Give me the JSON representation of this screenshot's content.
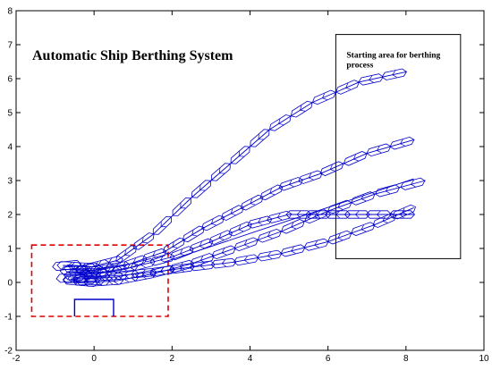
{
  "chart_data": {
    "type": "line",
    "title": "Automatic Ship Berthing System",
    "xlabel": "",
    "ylabel": "",
    "xlim": [
      -2,
      10
    ],
    "ylim": [
      -2,
      8
    ],
    "x_ticks": [
      "-2",
      "0",
      "2",
      "4",
      "6",
      "8",
      "10"
    ],
    "y_ticks": [
      "-2",
      "-1",
      "0",
      "1",
      "2",
      "3",
      "4",
      "5",
      "6",
      "7",
      "8"
    ],
    "grid": false,
    "line_color": "#0000cc",
    "trajectories": [
      {
        "start": [
          8.0,
          6.2
        ],
        "points": [
          [
            8.0,
            6.2
          ],
          [
            6.8,
            5.9
          ],
          [
            5.6,
            5.3
          ],
          [
            4.5,
            4.5
          ],
          [
            3.5,
            3.5
          ],
          [
            2.5,
            2.5
          ],
          [
            1.5,
            1.4
          ],
          [
            0.6,
            0.65
          ],
          [
            -0.1,
            0.45
          ],
          [
            -0.8,
            0.5
          ]
        ]
      },
      {
        "start": [
          8.2,
          4.2
        ],
        "points": [
          [
            8.2,
            4.2
          ],
          [
            7.0,
            3.8
          ],
          [
            5.8,
            3.2
          ],
          [
            4.8,
            2.8
          ],
          [
            3.8,
            2.2
          ],
          [
            2.8,
            1.6
          ],
          [
            1.8,
            0.9
          ],
          [
            0.8,
            0.5
          ],
          [
            0.0,
            0.35
          ],
          [
            -0.6,
            0.4
          ]
        ]
      },
      {
        "start": [
          8.2,
          2.0
        ],
        "points": [
          [
            8.2,
            2.0
          ],
          [
            7.0,
            2.0
          ],
          [
            6.0,
            2.0
          ],
          [
            5.0,
            2.0
          ],
          [
            4.0,
            1.7
          ],
          [
            3.0,
            1.2
          ],
          [
            2.0,
            0.75
          ],
          [
            1.0,
            0.45
          ],
          [
            0.2,
            0.3
          ],
          [
            -0.5,
            0.3
          ]
        ]
      },
      {
        "start": [
          8.2,
          2.2
        ],
        "points": [
          [
            8.2,
            2.2
          ],
          [
            7.2,
            1.7
          ],
          [
            6.0,
            1.2
          ],
          [
            4.8,
            0.85
          ],
          [
            3.6,
            0.6
          ],
          [
            2.5,
            0.45
          ],
          [
            1.5,
            0.3
          ],
          [
            0.6,
            0.2
          ],
          [
            -0.1,
            0.15
          ],
          [
            -0.6,
            0.1
          ]
        ]
      },
      {
        "start": [
          8.5,
          3.0
        ],
        "points": [
          [
            8.5,
            3.0
          ],
          [
            7.2,
            2.6
          ],
          [
            6.0,
            2.1
          ],
          [
            4.8,
            1.5
          ],
          [
            3.6,
            1.0
          ],
          [
            2.5,
            0.55
          ],
          [
            1.5,
            0.25
          ],
          [
            0.6,
            0.05
          ],
          [
            -0.1,
            0.0
          ],
          [
            -0.6,
            0.05
          ]
        ]
      }
    ],
    "ship_outline_x": [
      [
        8.1,
        8.5
      ],
      [
        8.1,
        8.5
      ]
    ],
    "starting_area": {
      "label": "Starting area for berthing process",
      "x": [
        6.2,
        9.4
      ],
      "y": [
        0.7,
        7.3
      ]
    },
    "berthing_area": {
      "x": [
        -1.6,
        1.9
      ],
      "y": [
        -1.0,
        1.1
      ],
      "style": "dashed",
      "color": "#dd0000"
    },
    "berth": {
      "x": [
        -0.5,
        0.5
      ],
      "y": [
        -1.0,
        -0.5
      ]
    }
  }
}
